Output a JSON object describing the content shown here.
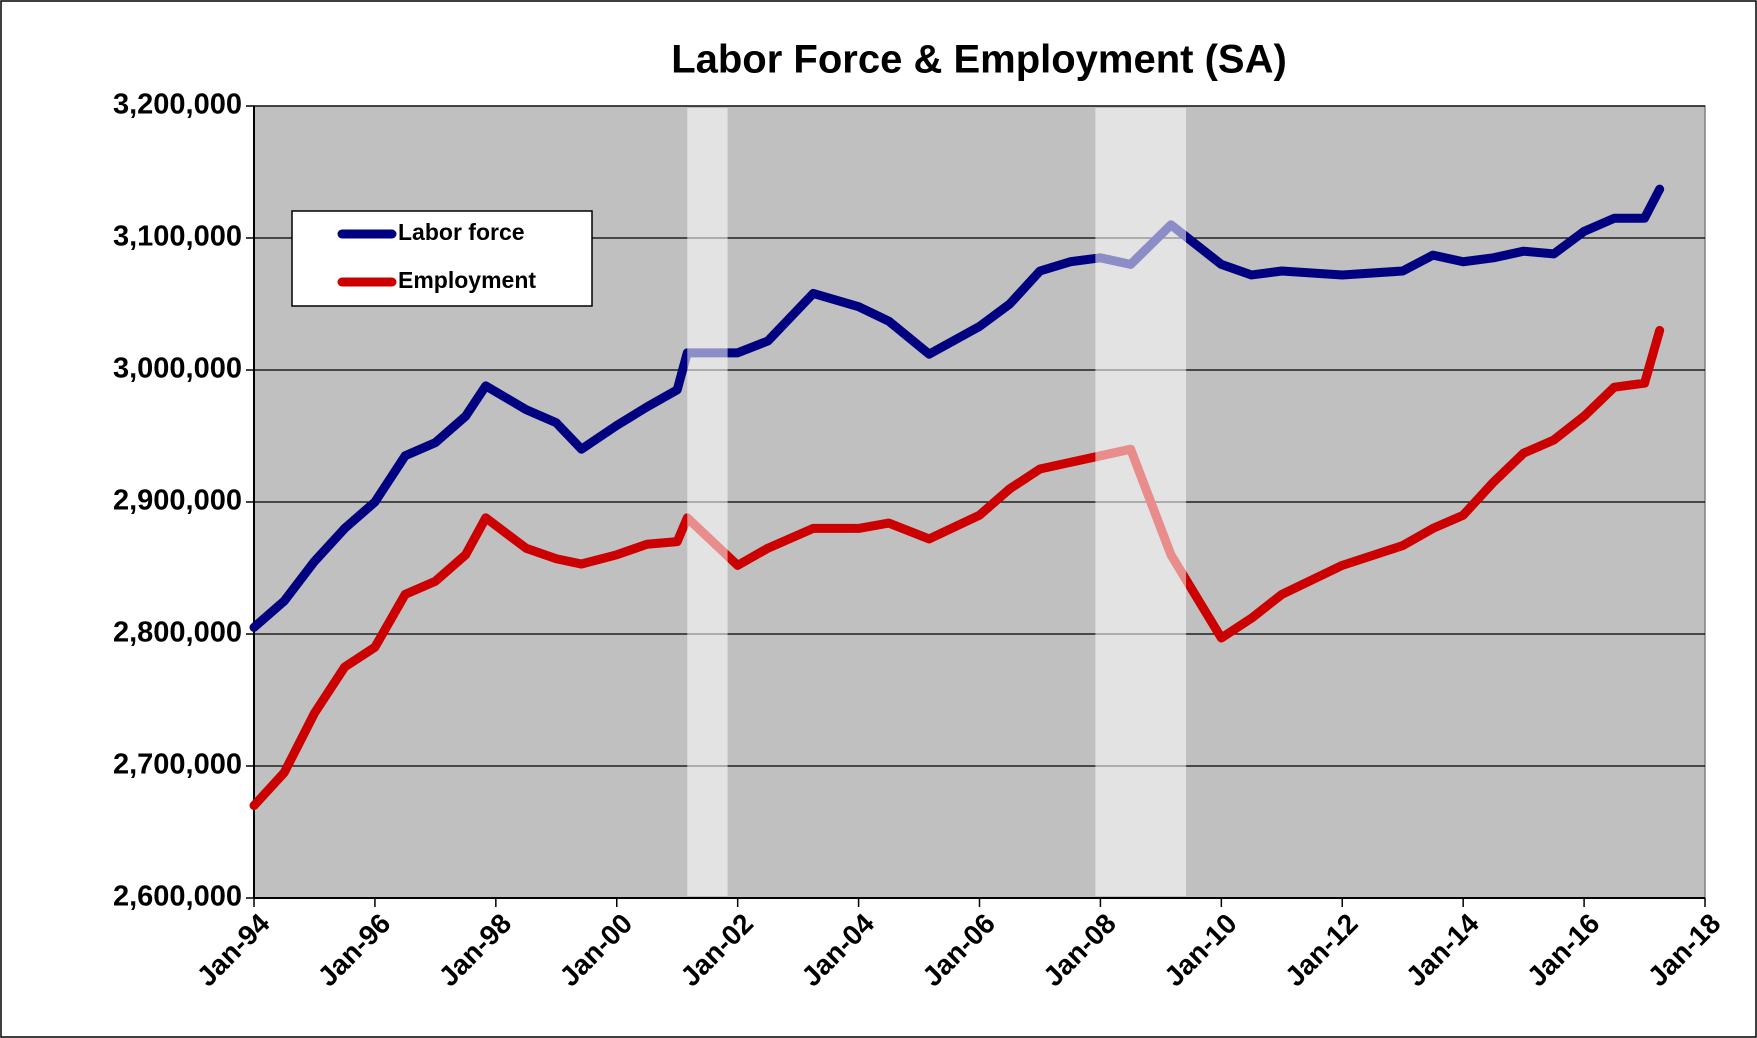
{
  "chart_data": {
    "type": "line",
    "title": "Labor Force & Employment (SA)",
    "x": [
      "Jan-94",
      "Jul-94",
      "Jan-95",
      "Jul-95",
      "Jan-96",
      "Jul-96",
      "Jan-97",
      "Jul-97",
      "Nov-97",
      "Jul-98",
      "Jan-99",
      "Jun-99",
      "Jan-00",
      "Jul-00",
      "Jan-01",
      "Mar-01",
      "Jan-02",
      "Jul-02",
      "Apr-03",
      "Jan-04",
      "Jul-04",
      "Mar-05",
      "Jan-06",
      "Jul-06",
      "Jan-07",
      "Jul-07",
      "Jan-08",
      "Jul-08",
      "Mar-09",
      "Jan-10",
      "Jul-10",
      "Jan-11",
      "Jan-12",
      "Jan-13",
      "Jul-13",
      "Jan-14",
      "Jul-14",
      "Jan-15",
      "Jul-15",
      "Jan-16",
      "Jul-16",
      "Jan-17",
      "Apr-17"
    ],
    "series": [
      {
        "name": "Labor force",
        "color": "#000080",
        "values": [
          2805000,
          2825000,
          2855000,
          2880000,
          2900000,
          2935000,
          2945000,
          2965000,
          2988000,
          2970000,
          2960000,
          2940000,
          2958000,
          2972000,
          2985000,
          3013000,
          3013000,
          3022000,
          3058000,
          3048000,
          3037000,
          3012000,
          3033000,
          3050000,
          3075000,
          3082000,
          3085000,
          3080000,
          3110000,
          3080000,
          3072000,
          3075000,
          3072000,
          3075000,
          3087000,
          3082000,
          3085000,
          3090000,
          3088000,
          3105000,
          3115000,
          3115000,
          3137000
        ]
      },
      {
        "name": "Employment",
        "color": "#cc0000",
        "values": [
          2670000,
          2695000,
          2740000,
          2775000,
          2790000,
          2830000,
          2840000,
          2860000,
          2888000,
          2865000,
          2857000,
          2853000,
          2860000,
          2868000,
          2870000,
          2888000,
          2852000,
          2865000,
          2880000,
          2880000,
          2884000,
          2872000,
          2890000,
          2910000,
          2925000,
          2930000,
          2935000,
          2940000,
          2860000,
          2797000,
          2812000,
          2830000,
          2852000,
          2867000,
          2880000,
          2890000,
          2915000,
          2937000,
          2947000,
          2965000,
          2987000,
          2990000,
          3030000
        ]
      }
    ],
    "recessions": [
      [
        "Mar-01",
        "Nov-01"
      ],
      [
        "Dec-07",
        "Jun-09"
      ]
    ],
    "xlim": [
      "Jan-94",
      "Jan-18"
    ],
    "xticks": [
      "Jan-94",
      "Jan-96",
      "Jan-98",
      "Jan-00",
      "Jan-02",
      "Jan-04",
      "Jan-06",
      "Jan-08",
      "Jan-10",
      "Jan-12",
      "Jan-14",
      "Jan-16",
      "Jan-18"
    ],
    "ylim": [
      2600000,
      3200000
    ],
    "yticks": [
      {
        "value": 2600000,
        "label": "2,600,000"
      },
      {
        "value": 2700000,
        "label": "2,700,000"
      },
      {
        "value": 2800000,
        "label": "2,800,000"
      },
      {
        "value": 2900000,
        "label": "2,900,000"
      },
      {
        "value": 3000000,
        "label": "3,000,000"
      },
      {
        "value": 3100000,
        "label": "3,100,000"
      },
      {
        "value": 3200000,
        "label": "3,200,000"
      }
    ],
    "grid": true,
    "legend": "upper left"
  }
}
